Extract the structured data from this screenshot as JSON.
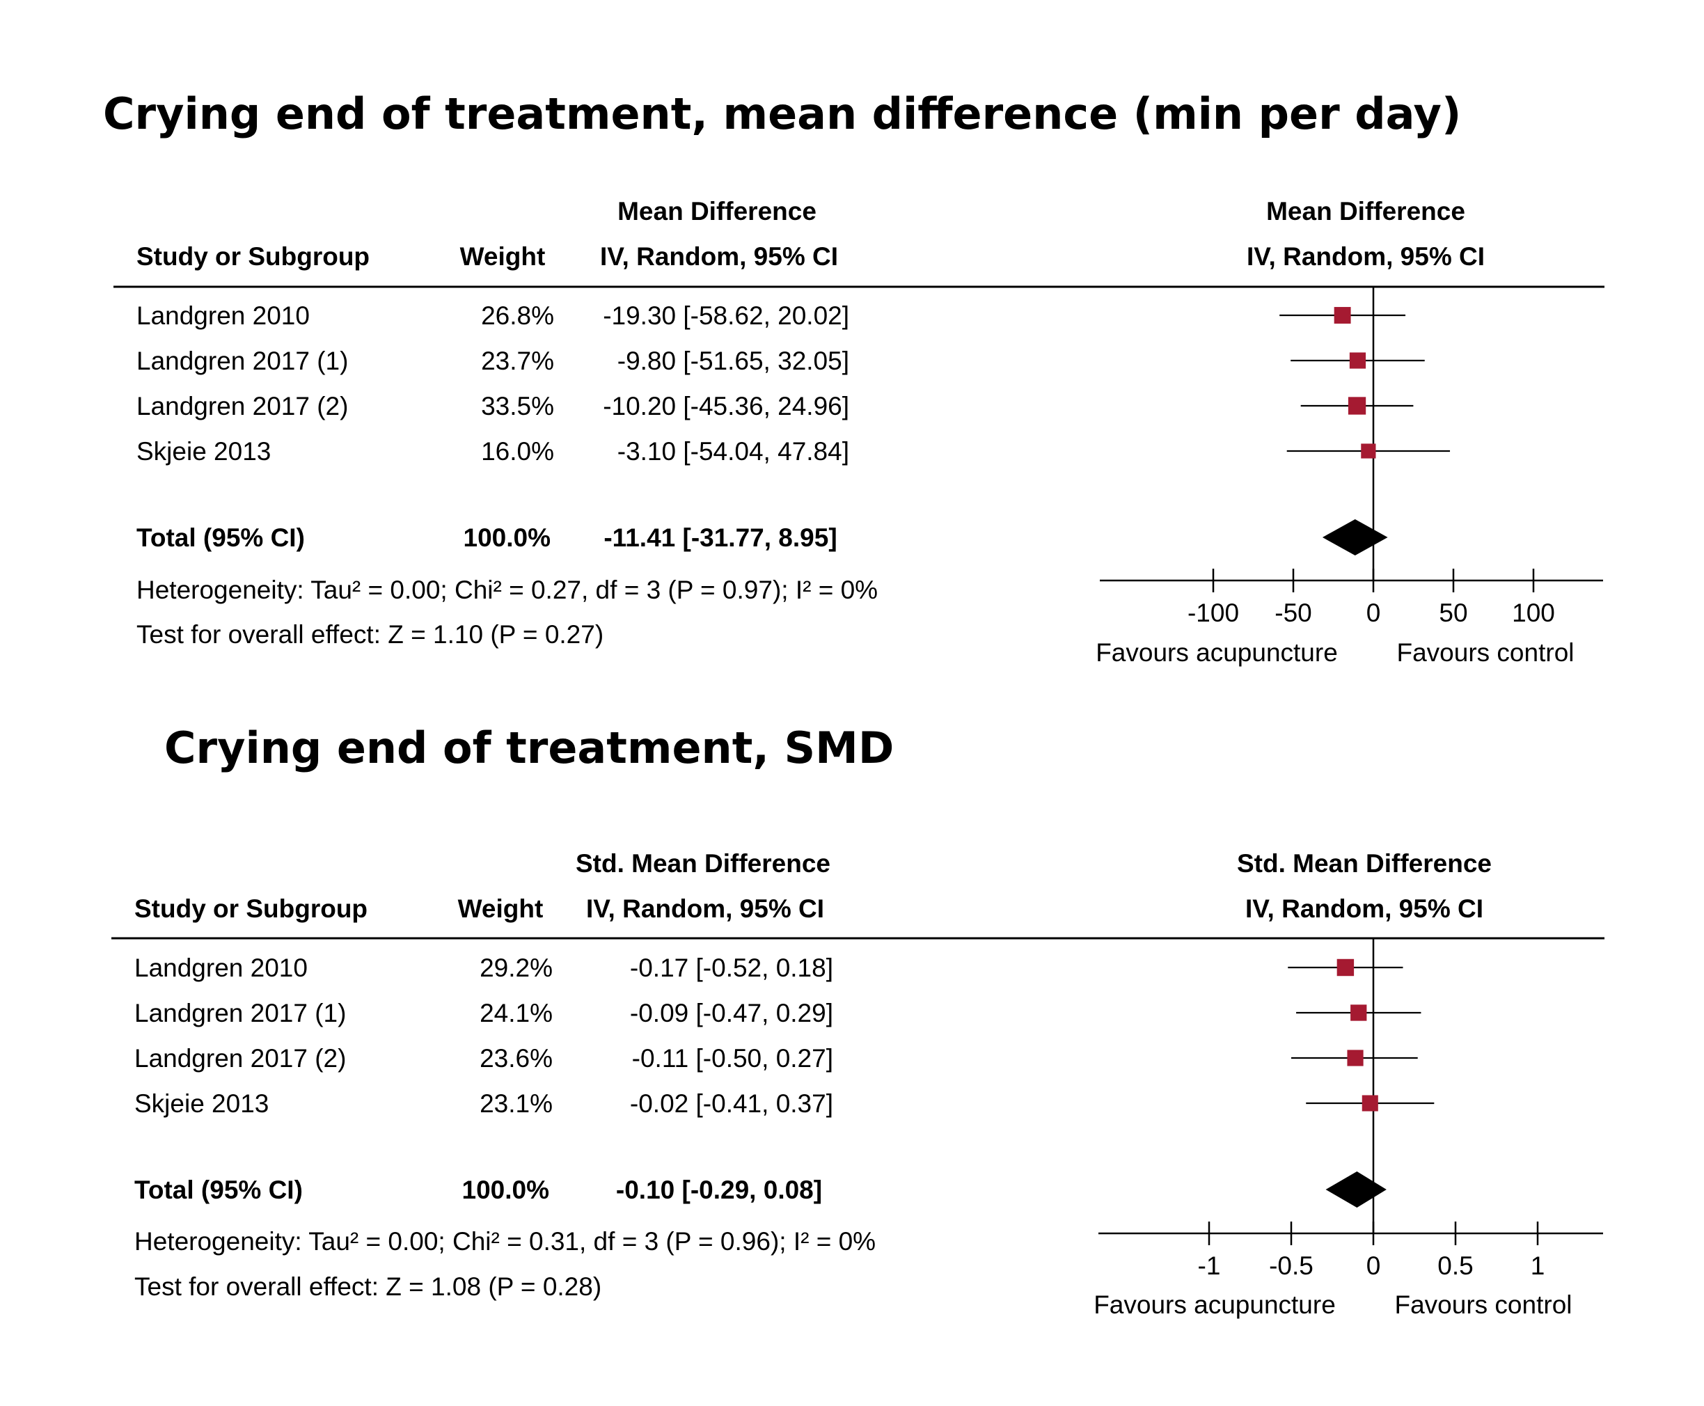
{
  "colors": {
    "marker": "#A51A31",
    "diamond": "#000000",
    "line": "#000000"
  },
  "chart_data": [
    {
      "type": "forest",
      "title": "Crying end of treatment, mean difference (min per day)",
      "headers": {
        "study": "Study or Subgroup",
        "weight": "Weight",
        "effect_top": "Mean Difference",
        "effect_bottom": "IV, Random, 95% CI",
        "plot_top": "Mean Difference",
        "plot_bottom": "IV, Random, 95% CI"
      },
      "studies": [
        {
          "name": "Landgren 2010",
          "weight": "26.8%",
          "text": "-19.30 [-58.62, 20.02]",
          "est": -19.3,
          "lo": -58.62,
          "hi": 20.02,
          "w": 26.8
        },
        {
          "name": "Landgren 2017 (1)",
          "weight": "23.7%",
          "text": "-9.80 [-51.65, 32.05]",
          "est": -9.8,
          "lo": -51.65,
          "hi": 32.05,
          "w": 23.7
        },
        {
          "name": "Landgren 2017 (2)",
          "weight": "33.5%",
          "text": "-10.20 [-45.36, 24.96]",
          "est": -10.2,
          "lo": -45.36,
          "hi": 24.96,
          "w": 33.5
        },
        {
          "name": "Skjeie 2013",
          "weight": "16.0%",
          "text": "-3.10 [-54.04, 47.84]",
          "est": -3.1,
          "lo": -54.04,
          "hi": 47.84,
          "w": 16.0
        }
      ],
      "total": {
        "name": "Total (95% CI)",
        "weight": "100.0%",
        "text": "-11.41 [-31.77, 8.95]",
        "est": -11.41,
        "lo": -31.77,
        "hi": 8.95
      },
      "heterogeneity": "Heterogeneity: Tau² = 0.00; Chi² = 0.27, df = 3 (P = 0.97); I² = 0%",
      "overall_effect": "Test for overall effect: Z = 1.10 (P = 0.27)",
      "xlim": [
        -170,
        140
      ],
      "ticks": [
        -100,
        -50,
        0,
        50,
        100
      ],
      "tick_labels": [
        "-100",
        "-50",
        "0",
        "50",
        "100"
      ],
      "favours_left": "Favours acupuncture",
      "favours_right": "Favours control"
    },
    {
      "type": "forest",
      "title": "Crying end of treatment, SMD",
      "headers": {
        "study": "Study or Subgroup",
        "weight": "Weight",
        "effect_top": "Std. Mean Difference",
        "effect_bottom": "IV, Random, 95% CI",
        "plot_top": "Std. Mean Difference",
        "plot_bottom": "IV, Random, 95% CI"
      },
      "studies": [
        {
          "name": "Landgren 2010",
          "weight": "29.2%",
          "text": "-0.17 [-0.52, 0.18]",
          "est": -0.17,
          "lo": -0.52,
          "hi": 0.18,
          "w": 29.2
        },
        {
          "name": "Landgren 2017 (1)",
          "weight": "24.1%",
          "text": "-0.09 [-0.47, 0.29]",
          "est": -0.09,
          "lo": -0.47,
          "hi": 0.29,
          "w": 24.1
        },
        {
          "name": "Landgren 2017 (2)",
          "weight": "23.6%",
          "text": "-0.11 [-0.50, 0.27]",
          "est": -0.11,
          "lo": -0.5,
          "hi": 0.27,
          "w": 23.6
        },
        {
          "name": "Skjeie 2013",
          "weight": "23.1%",
          "text": "-0.02 [-0.41, 0.37]",
          "est": -0.02,
          "lo": -0.41,
          "hi": 0.37,
          "w": 23.1
        }
      ],
      "total": {
        "name": "Total (95% CI)",
        "weight": "100.0%",
        "text": "-0.10 [-0.29, 0.08]",
        "est": -0.1,
        "lo": -0.29,
        "hi": 0.08
      },
      "heterogeneity": "Heterogeneity: Tau² = 0.00; Chi² = 0.31, df = 3 (P = 0.96); I² = 0%",
      "overall_effect": "Test for overall effect: Z = 1.08 (P = 0.28)",
      "xlim": [
        -1.7,
        1.4
      ],
      "ticks": [
        -1,
        -0.5,
        0,
        0.5,
        1
      ],
      "tick_labels": [
        "-1",
        "-0.5",
        "0",
        "0.5",
        "1"
      ],
      "favours_left": "Favours acupuncture",
      "favours_right": "Favours control"
    }
  ]
}
